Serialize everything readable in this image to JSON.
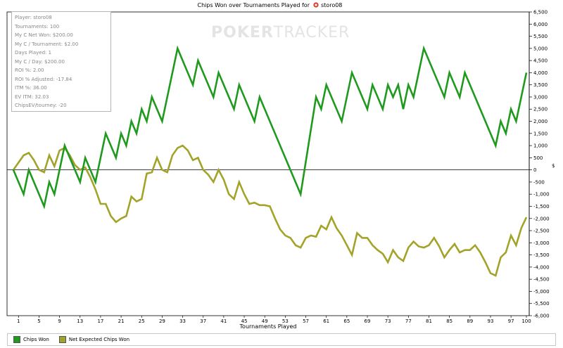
{
  "chart_data": {
    "type": "line",
    "title": "Chips Won over Tournaments Played for",
    "player_name": "storo08",
    "xlabel": "Tournaments Played",
    "ylabel": "$",
    "xlim": [
      0,
      100
    ],
    "ylim": [
      -6000,
      6500
    ],
    "x_ticks": [
      1,
      5,
      9,
      13,
      17,
      21,
      25,
      29,
      33,
      37,
      41,
      45,
      49,
      53,
      57,
      61,
      65,
      69,
      73,
      77,
      81,
      85,
      89,
      93,
      97,
      100
    ],
    "y_ticks": [
      6500,
      6000,
      5500,
      5000,
      4500,
      4000,
      3500,
      3000,
      2500,
      2000,
      1500,
      1000,
      500,
      0,
      -500,
      -1000,
      -1500,
      -2000,
      -2500,
      -3000,
      -3500,
      -4000,
      -4500,
      -5000,
      -5500,
      -6000
    ],
    "y_tick_labels": [
      "6,500",
      "6,000",
      "5,500",
      "5,000",
      "4,500",
      "4,000",
      "3,500",
      "3,000",
      "2,500",
      "2,000",
      "1,500",
      "1,000",
      "500",
      "0",
      "-500",
      "-1,000",
      "-1,500",
      "-2,000",
      "-2,500",
      "-3,000",
      "-3,500",
      "-4,000",
      "-4,500",
      "-5,000",
      "-5,500",
      "-6,000"
    ],
    "zero_line": true,
    "legend_position": "bottom-left",
    "series": [
      {
        "name": "Chips Won",
        "color": "#1f9a1f",
        "points": [
          [
            0,
            0
          ],
          [
            2,
            -1000
          ],
          [
            3,
            0
          ],
          [
            6,
            -1500
          ],
          [
            7,
            -500
          ],
          [
            8,
            -1000
          ],
          [
            10,
            1000
          ],
          [
            13,
            -500
          ],
          [
            14,
            500
          ],
          [
            16,
            -500
          ],
          [
            18,
            1500
          ],
          [
            20,
            500
          ],
          [
            21,
            1500
          ],
          [
            22,
            1000
          ],
          [
            23,
            2000
          ],
          [
            24,
            1500
          ],
          [
            25,
            2500
          ],
          [
            26,
            2000
          ],
          [
            27,
            3000
          ],
          [
            29,
            2000
          ],
          [
            32,
            5000
          ],
          [
            35,
            3500
          ],
          [
            36,
            4500
          ],
          [
            39,
            3000
          ],
          [
            40,
            4000
          ],
          [
            43,
            2500
          ],
          [
            44,
            3500
          ],
          [
            47,
            2000
          ],
          [
            48,
            3000
          ],
          [
            56,
            -1000
          ],
          [
            59,
            3000
          ],
          [
            60,
            2500
          ],
          [
            61,
            3500
          ],
          [
            64,
            2000
          ],
          [
            66,
            4000
          ],
          [
            69,
            2500
          ],
          [
            70,
            3500
          ],
          [
            72,
            2500
          ],
          [
            73,
            3500
          ],
          [
            74,
            3000
          ],
          [
            75,
            3500
          ],
          [
            76,
            2500
          ],
          [
            77,
            3500
          ],
          [
            78,
            3000
          ],
          [
            80,
            5000
          ],
          [
            84,
            3000
          ],
          [
            85,
            4000
          ],
          [
            87,
            3000
          ],
          [
            88,
            4000
          ],
          [
            94,
            1000
          ],
          [
            95,
            2000
          ],
          [
            96,
            1500
          ],
          [
            97,
            2500
          ],
          [
            98,
            2000
          ],
          [
            100,
            4000
          ]
        ]
      },
      {
        "name": "Net Expected Chips Won",
        "color": "#a3a32a",
        "points": [
          [
            0,
            0
          ],
          [
            1,
            300
          ],
          [
            2,
            600
          ],
          [
            3,
            700
          ],
          [
            4,
            400
          ],
          [
            5,
            0
          ],
          [
            6,
            -100
          ],
          [
            7,
            600
          ],
          [
            8,
            150
          ],
          [
            9,
            800
          ],
          [
            10,
            900
          ],
          [
            11,
            600
          ],
          [
            12,
            200
          ],
          [
            13,
            0
          ],
          [
            14,
            100
          ],
          [
            15,
            -300
          ],
          [
            16,
            -800
          ],
          [
            17,
            -1400
          ],
          [
            18,
            -1400
          ],
          [
            19,
            -1900
          ],
          [
            20,
            -2150
          ],
          [
            21,
            -2000
          ],
          [
            22,
            -1900
          ],
          [
            23,
            -1100
          ],
          [
            24,
            -1300
          ],
          [
            25,
            -1200
          ],
          [
            26,
            -150
          ],
          [
            27,
            -100
          ],
          [
            28,
            500
          ],
          [
            29,
            0
          ],
          [
            30,
            -100
          ],
          [
            31,
            600
          ],
          [
            32,
            900
          ],
          [
            33,
            1000
          ],
          [
            34,
            800
          ],
          [
            35,
            400
          ],
          [
            36,
            500
          ],
          [
            37,
            0
          ],
          [
            38,
            -200
          ],
          [
            39,
            -500
          ],
          [
            40,
            0
          ],
          [
            41,
            -400
          ],
          [
            42,
            -1000
          ],
          [
            43,
            -1200
          ],
          [
            44,
            -500
          ],
          [
            45,
            -1000
          ],
          [
            46,
            -1400
          ],
          [
            47,
            -1350
          ],
          [
            48,
            -1450
          ],
          [
            49,
            -1450
          ],
          [
            50,
            -1500
          ],
          [
            51,
            -2000
          ],
          [
            52,
            -2450
          ],
          [
            53,
            -2700
          ],
          [
            54,
            -2800
          ],
          [
            55,
            -3100
          ],
          [
            56,
            -3200
          ],
          [
            57,
            -2800
          ],
          [
            58,
            -2700
          ],
          [
            59,
            -2750
          ],
          [
            60,
            -2300
          ],
          [
            61,
            -2450
          ],
          [
            62,
            -1950
          ],
          [
            63,
            -2400
          ],
          [
            64,
            -2700
          ],
          [
            65,
            -3100
          ],
          [
            66,
            -3500
          ],
          [
            67,
            -2600
          ],
          [
            68,
            -2800
          ],
          [
            69,
            -2800
          ],
          [
            70,
            -3100
          ],
          [
            71,
            -3300
          ],
          [
            72,
            -3450
          ],
          [
            73,
            -3800
          ],
          [
            74,
            -3300
          ],
          [
            75,
            -3600
          ],
          [
            76,
            -3750
          ],
          [
            77,
            -3200
          ],
          [
            78,
            -2950
          ],
          [
            79,
            -3150
          ],
          [
            80,
            -3200
          ],
          [
            81,
            -3100
          ],
          [
            82,
            -2800
          ],
          [
            83,
            -3150
          ],
          [
            84,
            -3600
          ],
          [
            85,
            -3300
          ],
          [
            86,
            -3050
          ],
          [
            87,
            -3400
          ],
          [
            88,
            -3300
          ],
          [
            89,
            -3300
          ],
          [
            90,
            -3100
          ],
          [
            91,
            -3400
          ],
          [
            92,
            -3800
          ],
          [
            93,
            -4250
          ],
          [
            94,
            -4350
          ],
          [
            95,
            -3600
          ],
          [
            96,
            -3400
          ],
          [
            97,
            -2700
          ],
          [
            98,
            -3100
          ],
          [
            99,
            -2400
          ],
          [
            100,
            -1950
          ]
        ]
      }
    ]
  },
  "watermark": {
    "bold": "POKER",
    "light": "TRACKER"
  },
  "info_box": {
    "lines": [
      "Player: storo08",
      "Tournaments: 100",
      "My C Net Won: $200.00",
      "My C / Tournament: $2.00",
      "Days Played: 1",
      "My C / Day: $200.00",
      "ROI %: 2.00",
      "ROI % Adjusted: -17.84",
      "ITM %: 36.00",
      "EV ITM: 32.03",
      "ChipsEV/tourney: -20"
    ]
  },
  "legend": {
    "items": [
      {
        "label": "Chips Won",
        "color": "#1f9a1f"
      },
      {
        "label": "Net Expected Chips Won",
        "color": "#a3a32a"
      }
    ]
  },
  "title_icon": "poker-chip-icon"
}
